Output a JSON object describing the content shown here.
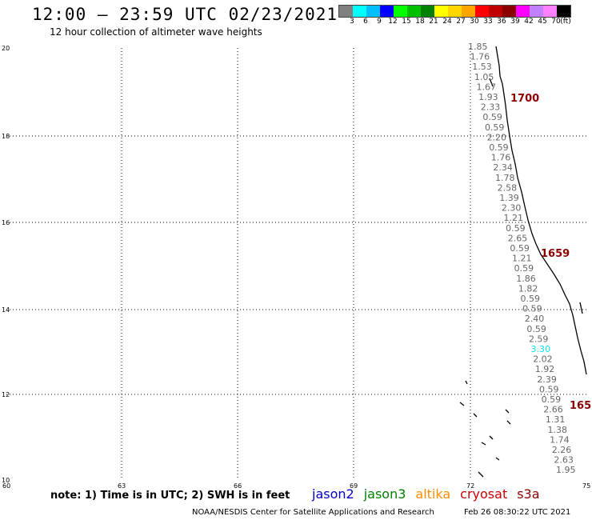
{
  "header": {
    "title": "12:00 – 23:59 UTC 02/23/2021",
    "subtitle": "12 hour collection of altimeter wave heights"
  },
  "legend": {
    "colors": [
      "#808080",
      "#00ffff",
      "#00bfff",
      "#0000ff",
      "#00ff00",
      "#00c000",
      "#008000",
      "#ffff00",
      "#ffd700",
      "#ffa500",
      "#ff0000",
      "#c00000",
      "#8b0000",
      "#ff00ff",
      "#c080ff",
      "#ff80ff",
      "#000000"
    ],
    "values": [
      "3",
      "6",
      "9",
      "12",
      "15",
      "18",
      "21",
      "24",
      "27",
      "30",
      "33",
      "36",
      "39",
      "42",
      "45",
      "70"
    ],
    "unit": "(ft)"
  },
  "axes": {
    "y_ticks": [
      "20",
      "18",
      "16",
      "14",
      "12",
      "10"
    ],
    "x_ticks": [
      "60",
      "63",
      "66",
      "69",
      "72",
      "75"
    ]
  },
  "swh_readings": [
    {
      "v": "1.85",
      "c": "#666"
    },
    {
      "v": "1.76",
      "c": "#666"
    },
    {
      "v": "1.53",
      "c": "#666"
    },
    {
      "v": "1.05",
      "c": "#666"
    },
    {
      "v": "1.67",
      "c": "#666"
    },
    {
      "v": "1.93",
      "c": "#666"
    },
    {
      "v": "2.33",
      "c": "#666"
    },
    {
      "v": "0.59",
      "c": "#666"
    },
    {
      "v": "0.59",
      "c": "#666"
    },
    {
      "v": "2.20",
      "c": "#666"
    },
    {
      "v": "0.59",
      "c": "#666"
    },
    {
      "v": "1.76",
      "c": "#666"
    },
    {
      "v": "2.34",
      "c": "#666"
    },
    {
      "v": "1.78",
      "c": "#666"
    },
    {
      "v": "2.58",
      "c": "#666"
    },
    {
      "v": "1.39",
      "c": "#666"
    },
    {
      "v": "2.30",
      "c": "#666"
    },
    {
      "v": "1.21",
      "c": "#666"
    },
    {
      "v": "0.59",
      "c": "#666"
    },
    {
      "v": "2.65",
      "c": "#666"
    },
    {
      "v": "0.59",
      "c": "#666"
    },
    {
      "v": "1.21",
      "c": "#666"
    },
    {
      "v": "0.59",
      "c": "#666"
    },
    {
      "v": "1.86",
      "c": "#666"
    },
    {
      "v": "1.82",
      "c": "#666"
    },
    {
      "v": "0.59",
      "c": "#666"
    },
    {
      "v": "0.59",
      "c": "#666"
    },
    {
      "v": "2.40",
      "c": "#666"
    },
    {
      "v": "0.59",
      "c": "#666"
    },
    {
      "v": "2.59",
      "c": "#666"
    },
    {
      "v": "3.30",
      "c": "#00e5ee"
    },
    {
      "v": "2.02",
      "c": "#666"
    },
    {
      "v": "1.92",
      "c": "#666"
    },
    {
      "v": "2.39",
      "c": "#666"
    },
    {
      "v": "0.59",
      "c": "#666"
    },
    {
      "v": "0.59",
      "c": "#666"
    },
    {
      "v": "2.66",
      "c": "#666"
    },
    {
      "v": "1.31",
      "c": "#666"
    },
    {
      "v": "1.38",
      "c": "#666"
    },
    {
      "v": "1.74",
      "c": "#666"
    },
    {
      "v": "2.26",
      "c": "#666"
    },
    {
      "v": "2.63",
      "c": "#666"
    },
    {
      "v": "1.95",
      "c": "#666"
    }
  ],
  "pass_times": [
    "1700",
    "1659",
    "165"
  ],
  "footer": {
    "note": "note: 1) Time is in UTC; 2) SWH is in feet",
    "satellites": [
      {
        "name": "jason2",
        "color": "#0000cc"
      },
      {
        "name": "jason3",
        "color": "#008000"
      },
      {
        "name": "altika",
        "color": "#ff8c00"
      },
      {
        "name": "cryosat",
        "color": "#cc0000"
      },
      {
        "name": "s3a",
        "color": "#8b0000"
      }
    ],
    "credit": "NOAA/NESDIS Center for Satellite Applications and Research",
    "created": "Feb 26 08:30:22 UTC 2021"
  }
}
